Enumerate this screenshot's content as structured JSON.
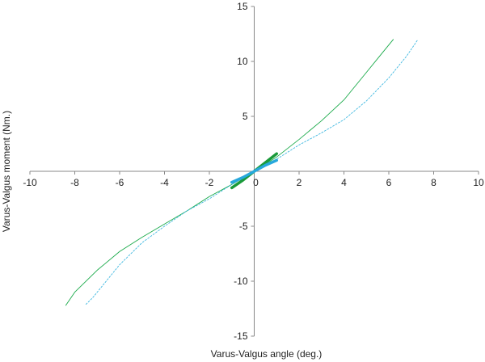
{
  "chart_data": {
    "type": "line",
    "title": "",
    "xlabel": "Varus-Valgus angle (deg.)",
    "ylabel": "Varus-Valgus moment (Nm.)",
    "xlim": [
      -10,
      10
    ],
    "ylim": [
      -15,
      15
    ],
    "x_ticks": [
      -10,
      -8,
      -6,
      -4,
      -2,
      0,
      2,
      4,
      6,
      8,
      10
    ],
    "y_ticks": [
      -15,
      -10,
      -5,
      0,
      5,
      10,
      15
    ],
    "x_tick_labels": [
      "-10",
      "-8",
      "-6",
      "-4",
      "-2",
      "0",
      "2",
      "4",
      "6",
      "8",
      "10"
    ],
    "y_tick_labels": [
      "-15",
      "-10",
      "-5",
      "0",
      "5",
      "10",
      "15"
    ],
    "grid": false,
    "legend": "none",
    "axes_cross_at_origin": true,
    "series": [
      {
        "color": "#1aaa4a",
        "style": "solid-thin",
        "points": [
          [
            -8.4,
            -12.2
          ],
          [
            -8.0,
            -11.0
          ],
          [
            -7.0,
            -9.0
          ],
          [
            -6.0,
            -7.3
          ],
          [
            -5.0,
            -6.0
          ],
          [
            -4.0,
            -4.8
          ],
          [
            -3.0,
            -3.6
          ],
          [
            -2.0,
            -2.3
          ],
          [
            -1.0,
            -1.2
          ],
          [
            0.0,
            0.0
          ],
          [
            1.0,
            1.3
          ],
          [
            2.0,
            2.9
          ],
          [
            3.0,
            4.6
          ],
          [
            4.0,
            6.5
          ],
          [
            5.0,
            9.0
          ],
          [
            5.6,
            10.5
          ],
          [
            6.2,
            12.0
          ]
        ]
      },
      {
        "color": "#3fb8e0",
        "style": "dashed-thin",
        "points": [
          [
            -7.5,
            -12.1
          ],
          [
            -7.2,
            -11.5
          ],
          [
            -6.6,
            -10.0
          ],
          [
            -6.0,
            -8.5
          ],
          [
            -5.0,
            -6.5
          ],
          [
            -4.0,
            -5.0
          ],
          [
            -3.0,
            -3.6
          ],
          [
            -2.0,
            -2.5
          ],
          [
            -1.0,
            -1.2
          ],
          [
            0.0,
            0.0
          ],
          [
            1.0,
            1.1
          ],
          [
            2.0,
            2.4
          ],
          [
            3.0,
            3.5
          ],
          [
            4.0,
            4.7
          ],
          [
            5.0,
            6.4
          ],
          [
            6.0,
            8.5
          ],
          [
            6.8,
            10.5
          ],
          [
            7.3,
            12.0
          ]
        ]
      },
      {
        "color": "#1a9a3a",
        "style": "solid-thick",
        "points": [
          [
            -1.0,
            -1.5
          ],
          [
            -0.5,
            -0.8
          ],
          [
            0.0,
            0.0
          ],
          [
            0.5,
            0.8
          ],
          [
            1.0,
            1.6
          ]
        ]
      },
      {
        "color": "#27a8dc",
        "style": "solid-thick",
        "points": [
          [
            -1.0,
            -1.0
          ],
          [
            -0.5,
            -0.55
          ],
          [
            0.0,
            0.0
          ],
          [
            0.5,
            0.55
          ],
          [
            1.0,
            1.0
          ]
        ]
      }
    ]
  }
}
